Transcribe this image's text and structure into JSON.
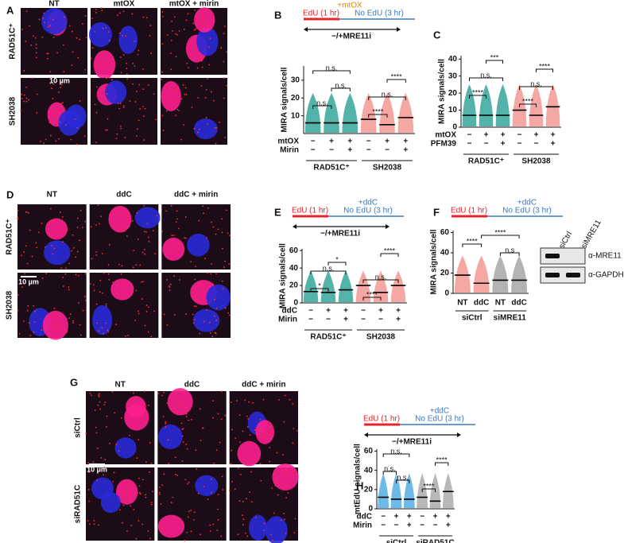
{
  "panels": [
    {
      "label": "A",
      "columns": [
        "NT",
        "mtOX",
        "mtOX + mirin"
      ],
      "rows": [
        "RAD51C⁺",
        "SH2038"
      ],
      "scale_bar": "10 µm"
    },
    {
      "label": "D",
      "columns": [
        "NT",
        "ddC",
        "ddC + mirin"
      ],
      "rows": [
        "RAD51C⁺",
        "SH2038"
      ],
      "scale_bar": "10 µm"
    },
    {
      "label": "G",
      "columns": [
        "NT",
        "ddC",
        "ddC + mirin"
      ],
      "rows": [
        "siCtrl",
        "siRAD51C"
      ],
      "scale_bar": "10 µm"
    }
  ],
  "blot": {
    "lanes": [
      "siCtrl",
      "siMRE11"
    ],
    "antibodies": [
      "α-MRE11",
      "α-GAPDH"
    ]
  },
  "chart_data": [
    {
      "type": "strip",
      "panel_label": "B",
      "schematic": {
        "pulse": "EdU (1 hr)",
        "chase": "No EdU (3 hr)",
        "treatment": "+mtOX",
        "inhibitor": "−/+MRE11i"
      },
      "ylabel": "MIRA signals/cell",
      "ylim": [
        0,
        38
      ],
      "yticks": [
        10,
        20,
        30
      ],
      "conditions": [
        {
          "name": "mtOX",
          "signs": [
            "−",
            "+",
            "+",
            "−",
            "+",
            "+"
          ]
        },
        {
          "name": "Mirin",
          "signs": [
            "−",
            "−",
            "+",
            "−",
            "−",
            "+"
          ]
        }
      ],
      "series": [
        {
          "name": "RAD51C⁺",
          "color": "#1b9a8c",
          "values": [
            6,
            6,
            6
          ]
        },
        {
          "name": "SH2038",
          "color": "#f08a84",
          "values": [
            8,
            5,
            9
          ]
        }
      ],
      "comparisons": [
        {
          "label": "n.s.",
          "between": [
            0,
            2
          ]
        },
        {
          "label": "****",
          "between": [
            4,
            5
          ]
        },
        {
          "label": "n.s.",
          "between": [
            1,
            2
          ]
        },
        {
          "label": "n.s.",
          "between": [
            3,
            5
          ]
        },
        {
          "label": "n.s.",
          "between": [
            0,
            1
          ]
        },
        {
          "label": "****",
          "between": [
            3,
            4
          ]
        }
      ]
    },
    {
      "type": "strip",
      "panel_label": "C",
      "ylabel": "MIRA signals/cell",
      "ylim": [
        0,
        42
      ],
      "yticks": [
        0,
        10,
        20,
        30,
        40
      ],
      "conditions": [
        {
          "name": "mtOX",
          "signs": [
            "−",
            "+",
            "+",
            "−",
            "+",
            "+"
          ]
        },
        {
          "name": "PFM39",
          "signs": [
            "−",
            "−",
            "+",
            "−",
            "−",
            "+"
          ]
        }
      ],
      "series": [
        {
          "name": "RAD51C⁺",
          "color": "#1b9a8c",
          "values": [
            7,
            7,
            7
          ]
        },
        {
          "name": "SH2038",
          "color": "#f08a84",
          "values": [
            10,
            7,
            12
          ]
        }
      ],
      "comparisons": [
        {
          "label": "***",
          "between": [
            1,
            2
          ]
        },
        {
          "label": "****",
          "between": [
            4,
            5
          ]
        },
        {
          "label": "n.s.",
          "between": [
            0,
            2
          ]
        },
        {
          "label": "n.s.",
          "between": [
            3,
            5
          ]
        },
        {
          "label": "****",
          "between": [
            0,
            1
          ]
        },
        {
          "label": "****",
          "between": [
            3,
            4
          ]
        }
      ]
    },
    {
      "type": "strip",
      "panel_label": "E",
      "schematic": {
        "pulse": "EdU (1 hr)",
        "chase": "No EdU (3 hr)",
        "treatment": "+ddC",
        "inhibitor": "−/+MRE11i"
      },
      "ylabel": "MIRA signals/cell",
      "ylim": [
        0,
        62
      ],
      "yticks": [
        0,
        20,
        40,
        60
      ],
      "conditions": [
        {
          "name": "ddC",
          "signs": [
            "−",
            "+",
            "+",
            "−",
            "+",
            "+"
          ]
        },
        {
          "name": "Mirin",
          "signs": [
            "−",
            "−",
            "+",
            "−",
            "−",
            "+"
          ]
        }
      ],
      "series": [
        {
          "name": "RAD51C⁺",
          "color": "#1b9a8c",
          "values": [
            13,
            12,
            15
          ]
        },
        {
          "name": "SH2038",
          "color": "#f08a84",
          "values": [
            20,
            12,
            20
          ]
        }
      ],
      "comparisons": [
        {
          "label": "****",
          "between": [
            4,
            5
          ]
        },
        {
          "label": "*",
          "between": [
            1,
            2
          ]
        },
        {
          "label": "n.s.",
          "between": [
            0,
            2
          ]
        },
        {
          "label": "n.s.",
          "between": [
            3,
            5
          ]
        },
        {
          "label": "*",
          "between": [
            0,
            1
          ]
        },
        {
          "label": "****",
          "between": [
            3,
            4
          ]
        }
      ]
    },
    {
      "type": "strip",
      "panel_label": "F",
      "schematic": {
        "pulse": "EdU (1 hr)",
        "chase": "No EdU (3 hr)",
        "treatment": "+ddC"
      },
      "ylabel": "MIRA signals/cell",
      "ylim": [
        0,
        62
      ],
      "yticks": [
        0,
        20,
        40,
        60
      ],
      "categories": [
        "NT",
        "ddC",
        "NT",
        "ddC"
      ],
      "series": [
        {
          "name": "siCtrl",
          "color": "#f08a84",
          "values": [
            18,
            10
          ]
        },
        {
          "name": "siMRE11",
          "color": "#9a9a9a",
          "values": [
            13,
            13
          ]
        }
      ],
      "comparisons": [
        {
          "label": "****",
          "between": [
            1,
            3
          ]
        },
        {
          "label": "****",
          "between": [
            0,
            1
          ]
        },
        {
          "label": "n.s",
          "between": [
            2,
            3
          ]
        }
      ]
    },
    {
      "type": "strip",
      "panel_label": "H",
      "schematic": {
        "pulse": "EdU (1 hr)",
        "chase": "No EdU (3 hr)",
        "treatment": "+ddC",
        "inhibitor": "−/+MRE11i"
      },
      "ylabel": "mtEdU signals/cell",
      "ylim": [
        0,
        62
      ],
      "yticks": [
        0,
        20,
        40,
        60
      ],
      "conditions": [
        {
          "name": "ddC",
          "signs": [
            "−",
            "+",
            "+",
            "−",
            "+",
            "+"
          ]
        },
        {
          "name": "Mirin",
          "signs": [
            "−",
            "−",
            "+",
            "−",
            "−",
            "+"
          ]
        }
      ],
      "series": [
        {
          "name": "siCtrl",
          "color": "#3aa3e3",
          "values": [
            12,
            10,
            10
          ]
        },
        {
          "name": "siRAD51C",
          "color": "#a0a0a0",
          "values": [
            12,
            8,
            18
          ]
        }
      ],
      "comparisons": [
        {
          "label": "n.s.",
          "between": [
            0,
            2
          ]
        },
        {
          "label": "****",
          "between": [
            4,
            5
          ]
        },
        {
          "label": "n.s.",
          "between": [
            0,
            1
          ]
        },
        {
          "label": "n.s.",
          "between": [
            1,
            2
          ]
        },
        {
          "label": "****",
          "between": [
            3,
            4
          ]
        }
      ]
    }
  ]
}
